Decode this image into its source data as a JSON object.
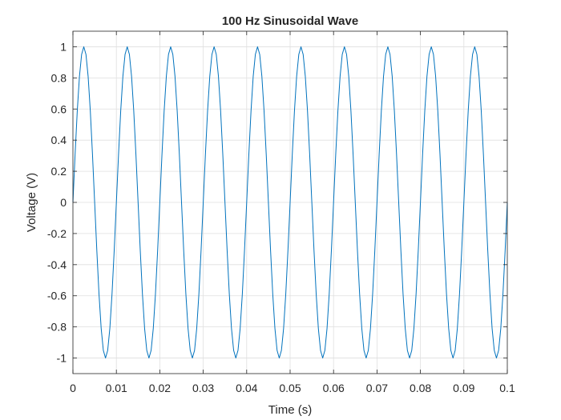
{
  "chart_data": {
    "type": "line",
    "title": "100 Hz Sinusoidal Wave",
    "xlabel": "Time (s)",
    "ylabel": "Voltage (V)",
    "xlim": [
      0,
      0.1
    ],
    "ylim": [
      -1.1,
      1.1
    ],
    "grid": true,
    "frequency_hz": 100,
    "sample_rate_hz": 2000,
    "x_ticks": [
      0,
      0.01,
      0.02,
      0.03,
      0.04,
      0.05,
      0.06,
      0.07,
      0.08,
      0.09,
      0.1
    ],
    "x_tick_labels": [
      "0",
      "0.01",
      "0.02",
      "0.03",
      "0.04",
      "0.05",
      "0.06",
      "0.07",
      "0.08",
      "0.09",
      "0.1"
    ],
    "y_ticks": [
      -1,
      -0.8,
      -0.6,
      -0.4,
      -0.2,
      0,
      0.2,
      0.4,
      0.6,
      0.8,
      1
    ],
    "y_tick_labels": [
      "-1",
      "-0.8",
      "-0.6",
      "-0.4",
      "-0.2",
      "0",
      "0.2",
      "0.4",
      "0.6",
      "0.8",
      "1"
    ],
    "series": [
      {
        "color": "#0072BD",
        "x": [
          0,
          0.0005,
          0.001,
          0.0015,
          0.002,
          0.0025,
          0.003,
          0.0035,
          0.004,
          0.0045,
          0.005,
          0.0055,
          0.006,
          0.0065,
          0.007,
          0.0075,
          0.008,
          0.0085,
          0.009,
          0.0095,
          0.01,
          0.0105,
          0.011,
          0.0115,
          0.012,
          0.0125,
          0.013,
          0.0135,
          0.014,
          0.0145,
          0.015,
          0.0155,
          0.016,
          0.0165,
          0.017,
          0.0175,
          0.018,
          0.0185,
          0.019,
          0.0195,
          0.02,
          0.0205,
          0.021,
          0.0215,
          0.022,
          0.0225,
          0.023,
          0.0235,
          0.024,
          0.0245,
          0.025,
          0.0255,
          0.026,
          0.0265,
          0.027,
          0.0275,
          0.028,
          0.0285,
          0.029,
          0.0295,
          0.03,
          0.0305,
          0.031,
          0.0315,
          0.032,
          0.0325,
          0.033,
          0.0335,
          0.034,
          0.0345,
          0.035,
          0.0355,
          0.036,
          0.0365,
          0.037,
          0.0375,
          0.038,
          0.0385,
          0.039,
          0.0395,
          0.04,
          0.0405,
          0.041,
          0.0415,
          0.042,
          0.0425,
          0.043,
          0.0435,
          0.044,
          0.0445,
          0.045,
          0.0455,
          0.046,
          0.0465,
          0.047,
          0.0475,
          0.048,
          0.0485,
          0.049,
          0.0495,
          0.05,
          0.0505,
          0.051,
          0.0515,
          0.052,
          0.0525,
          0.053,
          0.0535,
          0.054,
          0.0545,
          0.055,
          0.0555,
          0.056,
          0.0565,
          0.057,
          0.0575,
          0.058,
          0.0585,
          0.059,
          0.0595,
          0.06,
          0.0605,
          0.061,
          0.0615,
          0.062,
          0.0625,
          0.063,
          0.0635,
          0.064,
          0.0645,
          0.065,
          0.0655,
          0.066,
          0.0665,
          0.067,
          0.0675,
          0.068,
          0.0685,
          0.069,
          0.0695,
          0.07,
          0.0705,
          0.071,
          0.0715,
          0.072,
          0.0725,
          0.073,
          0.0735,
          0.074,
          0.0745,
          0.075,
          0.0755,
          0.076,
          0.0765,
          0.077,
          0.0775,
          0.078,
          0.0785,
          0.079,
          0.0795,
          0.08,
          0.0805,
          0.081,
          0.0815,
          0.082,
          0.0825,
          0.083,
          0.0835,
          0.084,
          0.0845,
          0.085,
          0.0855,
          0.086,
          0.0865,
          0.087,
          0.0875,
          0.088,
          0.0885,
          0.089,
          0.0895,
          0.09,
          0.0905,
          0.091,
          0.0915,
          0.092,
          0.0925,
          0.093,
          0.0935,
          0.094,
          0.0945,
          0.095,
          0.0955,
          0.096,
          0.0965,
          0.097,
          0.0975,
          0.098,
          0.0985,
          0.099,
          0.0995,
          0.1
        ],
        "y": [
          0,
          0.309,
          0.588,
          0.809,
          0.951,
          1,
          0.951,
          0.809,
          0.588,
          0.309,
          0,
          -0.309,
          -0.588,
          -0.809,
          -0.951,
          -1,
          -0.951,
          -0.809,
          -0.588,
          -0.309,
          0,
          0.309,
          0.588,
          0.809,
          0.951,
          1,
          0.951,
          0.809,
          0.588,
          0.309,
          0,
          -0.309,
          -0.588,
          -0.809,
          -0.951,
          -1,
          -0.951,
          -0.809,
          -0.588,
          -0.309,
          0,
          0.309,
          0.588,
          0.809,
          0.951,
          1,
          0.951,
          0.809,
          0.588,
          0.309,
          0,
          -0.309,
          -0.588,
          -0.809,
          -0.951,
          -1,
          -0.951,
          -0.809,
          -0.588,
          -0.309,
          0,
          0.309,
          0.588,
          0.809,
          0.951,
          1,
          0.951,
          0.809,
          0.588,
          0.309,
          0,
          -0.309,
          -0.588,
          -0.809,
          -0.951,
          -1,
          -0.951,
          -0.809,
          -0.588,
          -0.309,
          0,
          0.309,
          0.588,
          0.809,
          0.951,
          1,
          0.951,
          0.809,
          0.588,
          0.309,
          0,
          -0.309,
          -0.588,
          -0.809,
          -0.951,
          -1,
          -0.951,
          -0.809,
          -0.588,
          -0.309,
          0,
          0.309,
          0.588,
          0.809,
          0.951,
          1,
          0.951,
          0.809,
          0.588,
          0.309,
          0,
          -0.309,
          -0.588,
          -0.809,
          -0.951,
          -1,
          -0.951,
          -0.809,
          -0.588,
          -0.309,
          0,
          0.309,
          0.588,
          0.809,
          0.951,
          1,
          0.951,
          0.809,
          0.588,
          0.309,
          0,
          -0.309,
          -0.588,
          -0.809,
          -0.951,
          -1,
          -0.951,
          -0.809,
          -0.588,
          -0.309,
          0,
          0.309,
          0.588,
          0.809,
          0.951,
          1,
          0.951,
          0.809,
          0.588,
          0.309,
          0,
          -0.309,
          -0.588,
          -0.809,
          -0.951,
          -1,
          -0.951,
          -0.809,
          -0.588,
          -0.309,
          0,
          0.309,
          0.588,
          0.809,
          0.951,
          1,
          0.951,
          0.809,
          0.588,
          0.309,
          0,
          -0.309,
          -0.588,
          -0.809,
          -0.951,
          -1,
          -0.951,
          -0.809,
          -0.588,
          -0.309,
          0,
          0.309,
          0.588,
          0.809,
          0.951,
          1,
          0.951,
          0.809,
          0.588,
          0.309,
          0,
          -0.309,
          -0.588,
          -0.809,
          -0.951,
          -1,
          -0.951,
          -0.809,
          -0.588,
          -0.309,
          0
        ]
      }
    ]
  }
}
